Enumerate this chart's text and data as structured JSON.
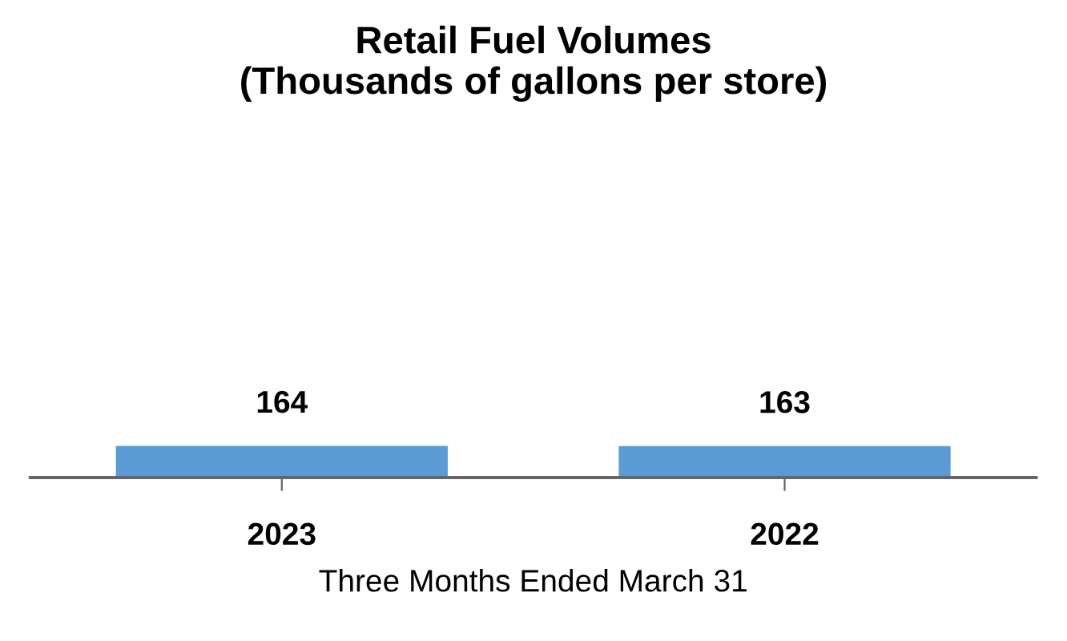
{
  "chart_data": {
    "type": "bar",
    "title": "Retail Fuel Volumes\n(Thousands of gallons per store)",
    "xlabel": "Three Months Ended March 31",
    "categories": [
      "2023",
      "2022"
    ],
    "values": [
      164,
      163
    ],
    "color": "#5b9bd5",
    "data_labels": true
  }
}
